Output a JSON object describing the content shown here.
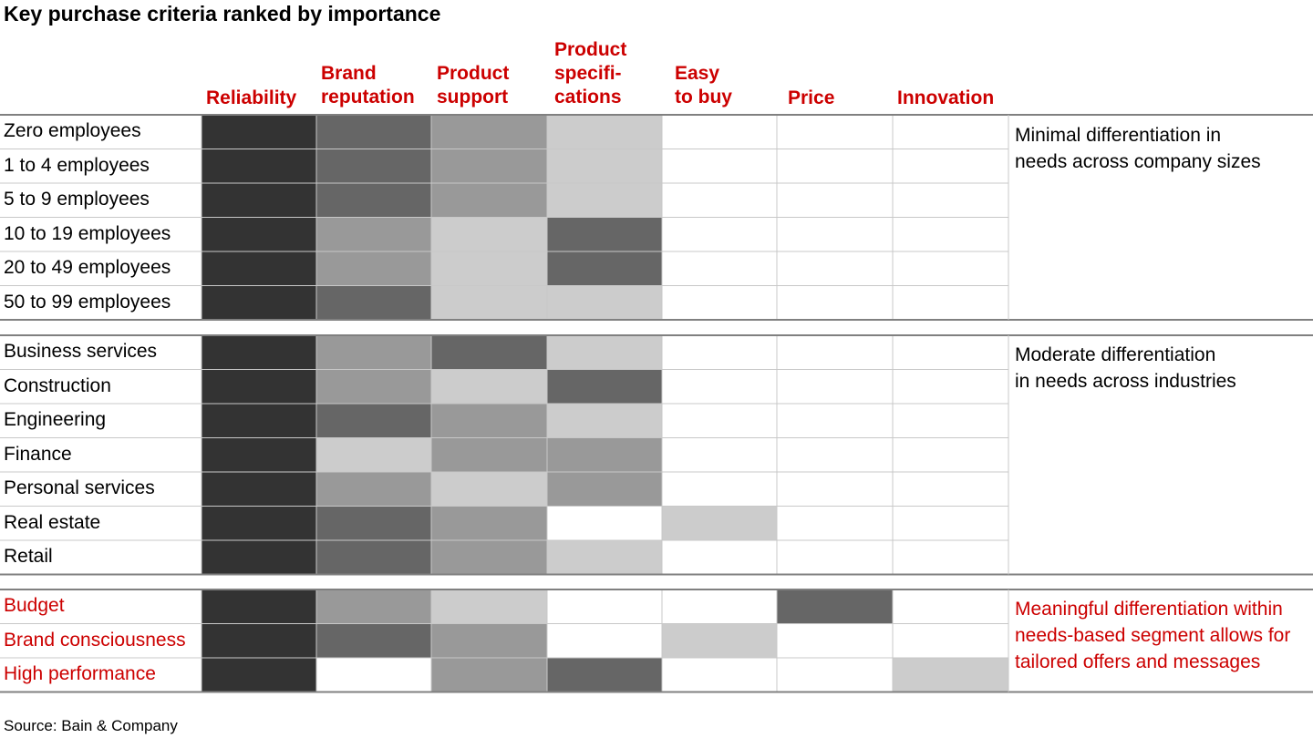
{
  "title": "Key purchase criteria ranked by importance",
  "source": "Source: Bain & Company",
  "colors": {
    "header_red": "#cc0000",
    "shades": [
      "#ffffff",
      "#cccccc",
      "#999999",
      "#666666",
      "#333333"
    ]
  },
  "chart_data": {
    "type": "heatmap",
    "title": "Key purchase criteria ranked by importance",
    "columns": [
      "Reliability",
      "Brand\nreputation",
      "Product\nsupport",
      "Product\nspecifi-\ncations",
      "Easy\nto buy",
      "Price",
      "Innovation"
    ],
    "value_scale": "0 = not in top ranks (white); 1 = light grey; 2 = mid grey; 3 = dark grey; 4 = darkest (most important)",
    "groups": [
      {
        "name": "company_size",
        "note": "Minimal differentiation in\nneeds across company sizes",
        "note_red": false,
        "rows": [
          {
            "label": "Zero employees",
            "red": false,
            "values": [
              4,
              3,
              2,
              1,
              0,
              0,
              0
            ]
          },
          {
            "label": "1 to 4 employees",
            "red": false,
            "values": [
              4,
              3,
              2,
              1,
              0,
              0,
              0
            ]
          },
          {
            "label": "5 to 9 employees",
            "red": false,
            "values": [
              4,
              3,
              2,
              1,
              0,
              0,
              0
            ]
          },
          {
            "label": "10 to 19 employees",
            "red": false,
            "values": [
              4,
              2,
              1,
              3,
              0,
              0,
              0
            ]
          },
          {
            "label": "20 to 49 employees",
            "red": false,
            "values": [
              4,
              2,
              1,
              3,
              0,
              0,
              0
            ]
          },
          {
            "label": "50 to 99 employees",
            "red": false,
            "values": [
              4,
              3,
              1,
              1,
              0,
              0,
              0
            ]
          }
        ]
      },
      {
        "name": "industry",
        "note": "Moderate differentiation\nin needs across industries",
        "note_red": false,
        "rows": [
          {
            "label": "Business services",
            "red": false,
            "values": [
              4,
              2,
              3,
              1,
              0,
              0,
              0
            ]
          },
          {
            "label": "Construction",
            "red": false,
            "values": [
              4,
              2,
              1,
              3,
              0,
              0,
              0
            ]
          },
          {
            "label": "Engineering",
            "red": false,
            "values": [
              4,
              3,
              2,
              1,
              0,
              0,
              0
            ]
          },
          {
            "label": "Finance",
            "red": false,
            "values": [
              4,
              1,
              2,
              2,
              0,
              0,
              0
            ]
          },
          {
            "label": "Personal services",
            "red": false,
            "values": [
              4,
              2,
              1,
              2,
              0,
              0,
              0
            ]
          },
          {
            "label": "Real estate",
            "red": false,
            "values": [
              4,
              3,
              2,
              0,
              1,
              0,
              0
            ]
          },
          {
            "label": "Retail",
            "red": false,
            "values": [
              4,
              3,
              2,
              1,
              0,
              0,
              0
            ]
          }
        ]
      },
      {
        "name": "needs_based",
        "note": "Meaningful differentiation within\nneeds-based segment allows for\ntailored offers and messages",
        "note_red": true,
        "rows": [
          {
            "label": "Budget",
            "red": true,
            "values": [
              4,
              2,
              1,
              0,
              0,
              3,
              0
            ]
          },
          {
            "label": "Brand consciousness",
            "red": true,
            "values": [
              4,
              3,
              2,
              0,
              1,
              0,
              0
            ]
          },
          {
            "label": "High performance",
            "red": true,
            "values": [
              4,
              0,
              2,
              3,
              0,
              0,
              1
            ]
          }
        ]
      }
    ]
  }
}
